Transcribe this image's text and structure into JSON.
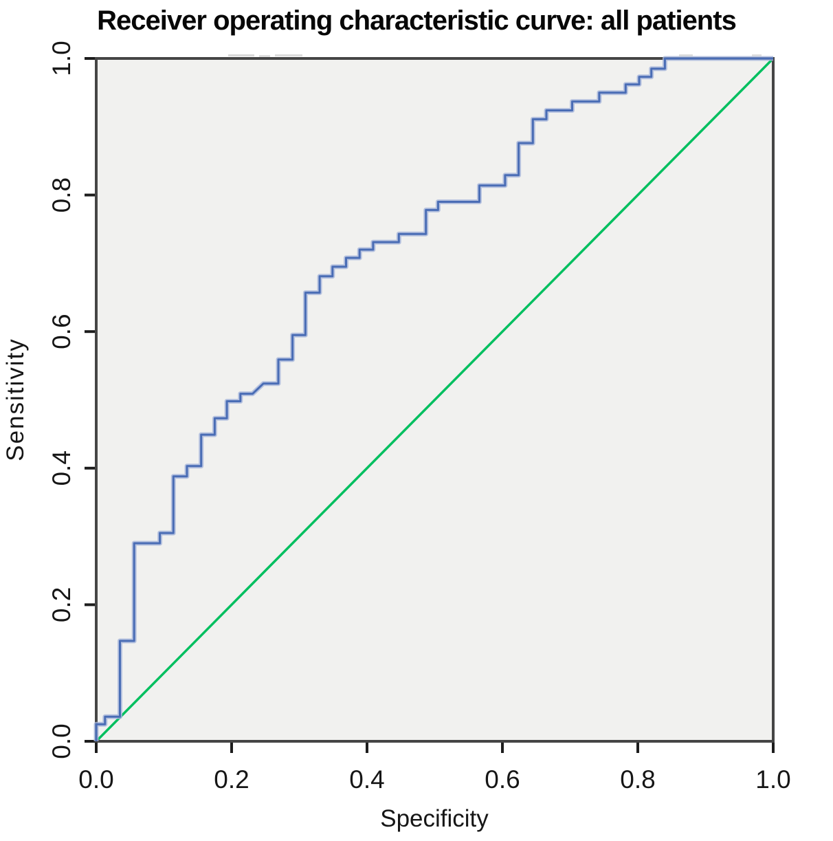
{
  "page": {
    "background_color": "#ffffff"
  },
  "chart_data": {
    "type": "line",
    "subtype": "roc-step-curve",
    "title": "Receiver operating characteristic curve: all patients",
    "xlabel": "Specificity",
    "ylabel": "Sensitivity",
    "xlim": [
      0,
      1
    ],
    "ylim": [
      0,
      1
    ],
    "grid": false,
    "legend_position": "none",
    "plot_background": "#f1f1ef",
    "border_color": "#454545",
    "tick_color": "#1d1d1d",
    "x_tick_values": [
      0,
      0.2,
      0.4,
      0.6,
      0.8,
      1.0
    ],
    "x_tick_labels": [
      "0.0",
      "0.2",
      "0.4",
      "0.6",
      "0.8",
      "1.0"
    ],
    "y_tick_values": [
      0,
      0.2,
      0.4,
      0.6,
      0.8,
      1.0
    ],
    "y_tick_labels": [
      "0.0",
      "0.2",
      "0.4",
      "0.6",
      "0.8",
      "1.0"
    ],
    "series": [
      {
        "name": "roc-curve",
        "style": "step",
        "color": "#4a6db5",
        "halo_color": "#a7b7db",
        "points": [
          [
            0,
            0
          ],
          [
            0,
            0.025
          ],
          [
            0.013,
            0.025
          ],
          [
            0.013,
            0.036
          ],
          [
            0.035,
            0.036
          ],
          [
            0.035,
            0.147
          ],
          [
            0.056,
            0.147
          ],
          [
            0.056,
            0.29
          ],
          [
            0.094,
            0.29
          ],
          [
            0.094,
            0.305
          ],
          [
            0.114,
            0.305
          ],
          [
            0.114,
            0.388
          ],
          [
            0.134,
            0.388
          ],
          [
            0.134,
            0.403
          ],
          [
            0.155,
            0.403
          ],
          [
            0.155,
            0.449
          ],
          [
            0.175,
            0.449
          ],
          [
            0.175,
            0.473
          ],
          [
            0.193,
            0.473
          ],
          [
            0.193,
            0.498
          ],
          [
            0.213,
            0.498
          ],
          [
            0.213,
            0.509
          ],
          [
            0.231,
            0.509
          ],
          [
            0.247,
            0.524
          ],
          [
            0.269,
            0.524
          ],
          [
            0.269,
            0.559
          ],
          [
            0.29,
            0.559
          ],
          [
            0.29,
            0.595
          ],
          [
            0.309,
            0.595
          ],
          [
            0.309,
            0.657
          ],
          [
            0.33,
            0.657
          ],
          [
            0.33,
            0.681
          ],
          [
            0.349,
            0.681
          ],
          [
            0.349,
            0.695
          ],
          [
            0.369,
            0.695
          ],
          [
            0.369,
            0.708
          ],
          [
            0.389,
            0.708
          ],
          [
            0.389,
            0.72
          ],
          [
            0.409,
            0.72
          ],
          [
            0.409,
            0.731
          ],
          [
            0.447,
            0.731
          ],
          [
            0.447,
            0.743
          ],
          [
            0.487,
            0.743
          ],
          [
            0.487,
            0.778
          ],
          [
            0.505,
            0.778
          ],
          [
            0.505,
            0.79
          ],
          [
            0.566,
            0.79
          ],
          [
            0.566,
            0.814
          ],
          [
            0.604,
            0.814
          ],
          [
            0.604,
            0.829
          ],
          [
            0.624,
            0.829
          ],
          [
            0.624,
            0.876
          ],
          [
            0.645,
            0.876
          ],
          [
            0.645,
            0.911
          ],
          [
            0.665,
            0.911
          ],
          [
            0.665,
            0.924
          ],
          [
            0.703,
            0.924
          ],
          [
            0.703,
            0.937
          ],
          [
            0.743,
            0.937
          ],
          [
            0.743,
            0.95
          ],
          [
            0.782,
            0.95
          ],
          [
            0.782,
            0.962
          ],
          [
            0.802,
            0.962
          ],
          [
            0.802,
            0.973
          ],
          [
            0.82,
            0.973
          ],
          [
            0.82,
            0.985
          ],
          [
            0.84,
            0.985
          ],
          [
            0.84,
            1
          ],
          [
            1,
            1
          ]
        ]
      },
      {
        "name": "reference-line",
        "style": "line",
        "color": "#00bf5f",
        "points": [
          [
            0,
            0
          ],
          [
            1,
            1
          ]
        ]
      }
    ]
  }
}
